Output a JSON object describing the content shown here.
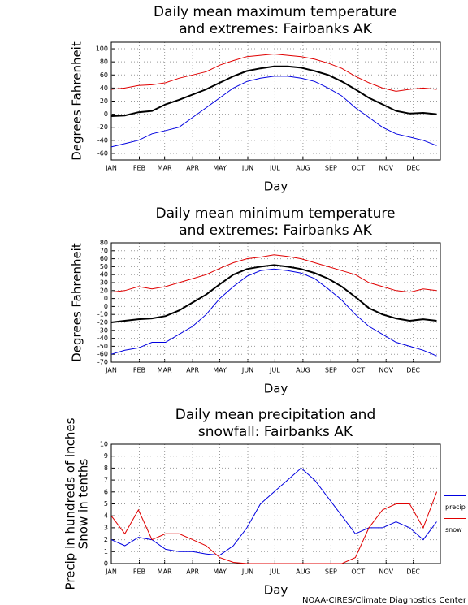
{
  "chart_data": [
    {
      "type": "line",
      "title": [
        "Daily mean maximum temperature",
        "and extremes: Fairbanks AK"
      ],
      "ylabel": [
        "Degrees Fahrenheit"
      ],
      "xlabel": "Day",
      "xlim": [
        1,
        365
      ],
      "xticks": [
        {
          "value": 1,
          "label": "JAN"
        },
        {
          "value": 32,
          "label": "FEB"
        },
        {
          "value": 60,
          "label": "MAR"
        },
        {
          "value": 91,
          "label": "APR"
        },
        {
          "value": 121,
          "label": "MAY"
        },
        {
          "value": 152,
          "label": "JUN"
        },
        {
          "value": 182,
          "label": "JUL"
        },
        {
          "value": 213,
          "label": "AUG"
        },
        {
          "value": 244,
          "label": "SEP"
        },
        {
          "value": 274,
          "label": "OCT"
        },
        {
          "value": 305,
          "label": "NOV"
        },
        {
          "value": 335,
          "label": "DEC"
        }
      ],
      "ylim": [
        -70,
        110
      ],
      "yticks": [
        -60,
        -40,
        -20,
        0,
        20,
        40,
        60,
        80,
        100
      ],
      "grid": true,
      "x": [
        1,
        16,
        31,
        46,
        61,
        76,
        91,
        106,
        121,
        136,
        151,
        166,
        181,
        196,
        211,
        226,
        241,
        256,
        271,
        286,
        301,
        316,
        331,
        346,
        361
      ],
      "series": [
        {
          "color": "#e00000",
          "values": [
            38,
            40,
            44,
            45,
            48,
            55,
            60,
            65,
            75,
            82,
            88,
            90,
            92,
            90,
            88,
            84,
            78,
            70,
            58,
            48,
            40,
            35,
            38,
            40,
            38
          ]
        },
        {
          "color": "#0000e0",
          "values": [
            -50,
            -45,
            -40,
            -30,
            -25,
            -20,
            -5,
            10,
            25,
            40,
            50,
            55,
            58,
            58,
            55,
            50,
            40,
            28,
            10,
            -5,
            -20,
            -30,
            -35,
            -40,
            -48
          ]
        },
        {
          "color": "#000000",
          "values": [
            -3,
            -2,
            3,
            5,
            15,
            22,
            30,
            38,
            48,
            58,
            66,
            70,
            73,
            73,
            71,
            66,
            60,
            50,
            38,
            25,
            15,
            5,
            1,
            2,
            0
          ]
        }
      ]
    },
    {
      "type": "line",
      "title": [
        "Daily mean minimum temperature",
        "and extremes: Fairbanks AK"
      ],
      "ylabel": [
        "Degrees Fahrenheit"
      ],
      "xlabel": "Day",
      "xlim": [
        1,
        365
      ],
      "xticks": [
        {
          "value": 1,
          "label": "JAN"
        },
        {
          "value": 32,
          "label": "FEB"
        },
        {
          "value": 60,
          "label": "MAR"
        },
        {
          "value": 91,
          "label": "APR"
        },
        {
          "value": 121,
          "label": "MAY"
        },
        {
          "value": 152,
          "label": "JUN"
        },
        {
          "value": 182,
          "label": "JUL"
        },
        {
          "value": 213,
          "label": "AUG"
        },
        {
          "value": 244,
          "label": "SEP"
        },
        {
          "value": 274,
          "label": "OCT"
        },
        {
          "value": 305,
          "label": "NOV"
        },
        {
          "value": 335,
          "label": "DEC"
        }
      ],
      "ylim": [
        -70,
        80
      ],
      "yticks": [
        -70,
        -60,
        -50,
        -40,
        -30,
        -20,
        -10,
        0,
        10,
        20,
        30,
        40,
        50,
        60,
        70,
        80
      ],
      "grid": true,
      "x": [
        1,
        16,
        31,
        46,
        61,
        76,
        91,
        106,
        121,
        136,
        151,
        166,
        181,
        196,
        211,
        226,
        241,
        256,
        271,
        286,
        301,
        316,
        331,
        346,
        361
      ],
      "series": [
        {
          "color": "#e00000",
          "values": [
            18,
            20,
            25,
            22,
            25,
            30,
            35,
            40,
            48,
            55,
            60,
            62,
            65,
            63,
            60,
            55,
            50,
            45,
            40,
            30,
            25,
            20,
            18,
            22,
            20
          ]
        },
        {
          "color": "#0000e0",
          "values": [
            -60,
            -55,
            -52,
            -45,
            -45,
            -35,
            -25,
            -10,
            10,
            25,
            38,
            45,
            47,
            45,
            42,
            35,
            22,
            8,
            -10,
            -25,
            -35,
            -45,
            -50,
            -55,
            -62
          ]
        },
        {
          "color": "#000000",
          "values": [
            -20,
            -18,
            -16,
            -15,
            -12,
            -5,
            5,
            15,
            28,
            40,
            47,
            50,
            52,
            50,
            47,
            42,
            35,
            25,
            12,
            -2,
            -10,
            -15,
            -18,
            -16,
            -18
          ]
        }
      ]
    },
    {
      "type": "line",
      "title": [
        "Daily mean precipitation and",
        "snowfall: Fairbanks AK"
      ],
      "ylabel": [
        "Precip in hundreds of inches",
        "Snow in tenths"
      ],
      "xlabel": "Day",
      "xlim": [
        1,
        365
      ],
      "xticks": [
        {
          "value": 1,
          "label": "JAN"
        },
        {
          "value": 32,
          "label": "FEB"
        },
        {
          "value": 60,
          "label": "MAR"
        },
        {
          "value": 91,
          "label": "APR"
        },
        {
          "value": 121,
          "label": "MAY"
        },
        {
          "value": 152,
          "label": "JUN"
        },
        {
          "value": 182,
          "label": "JUL"
        },
        {
          "value": 213,
          "label": "AUG"
        },
        {
          "value": 244,
          "label": "SEP"
        },
        {
          "value": 274,
          "label": "OCT"
        },
        {
          "value": 305,
          "label": "NOV"
        },
        {
          "value": 335,
          "label": "DEC"
        }
      ],
      "ylim": [
        0,
        10
      ],
      "yticks": [
        0,
        1,
        2,
        3,
        4,
        5,
        6,
        7,
        8,
        9,
        10
      ],
      "grid": true,
      "legend": "right",
      "x": [
        1,
        16,
        31,
        46,
        61,
        76,
        91,
        106,
        121,
        136,
        151,
        166,
        181,
        196,
        211,
        226,
        241,
        256,
        271,
        286,
        301,
        316,
        331,
        346,
        361
      ],
      "series": [
        {
          "name": "precip",
          "color": "#0000e0",
          "values": [
            2,
            1.5,
            2.2,
            2,
            1.2,
            1,
            1,
            0.8,
            0.7,
            1.5,
            3,
            5,
            6,
            7,
            8,
            7,
            5.5,
            4,
            2.5,
            3,
            3,
            3.5,
            3,
            2,
            3.5
          ]
        },
        {
          "name": "snow",
          "color": "#e00000",
          "values": [
            4,
            2.5,
            4.5,
            2,
            2.5,
            2.5,
            2,
            1.5,
            0.5,
            0.1,
            0,
            0,
            0,
            0,
            0,
            0,
            0,
            0,
            0.5,
            3,
            4.5,
            5,
            5,
            3,
            6
          ]
        }
      ]
    }
  ],
  "footer": "NOAA-CIRES/Climate Diagnostics Center"
}
